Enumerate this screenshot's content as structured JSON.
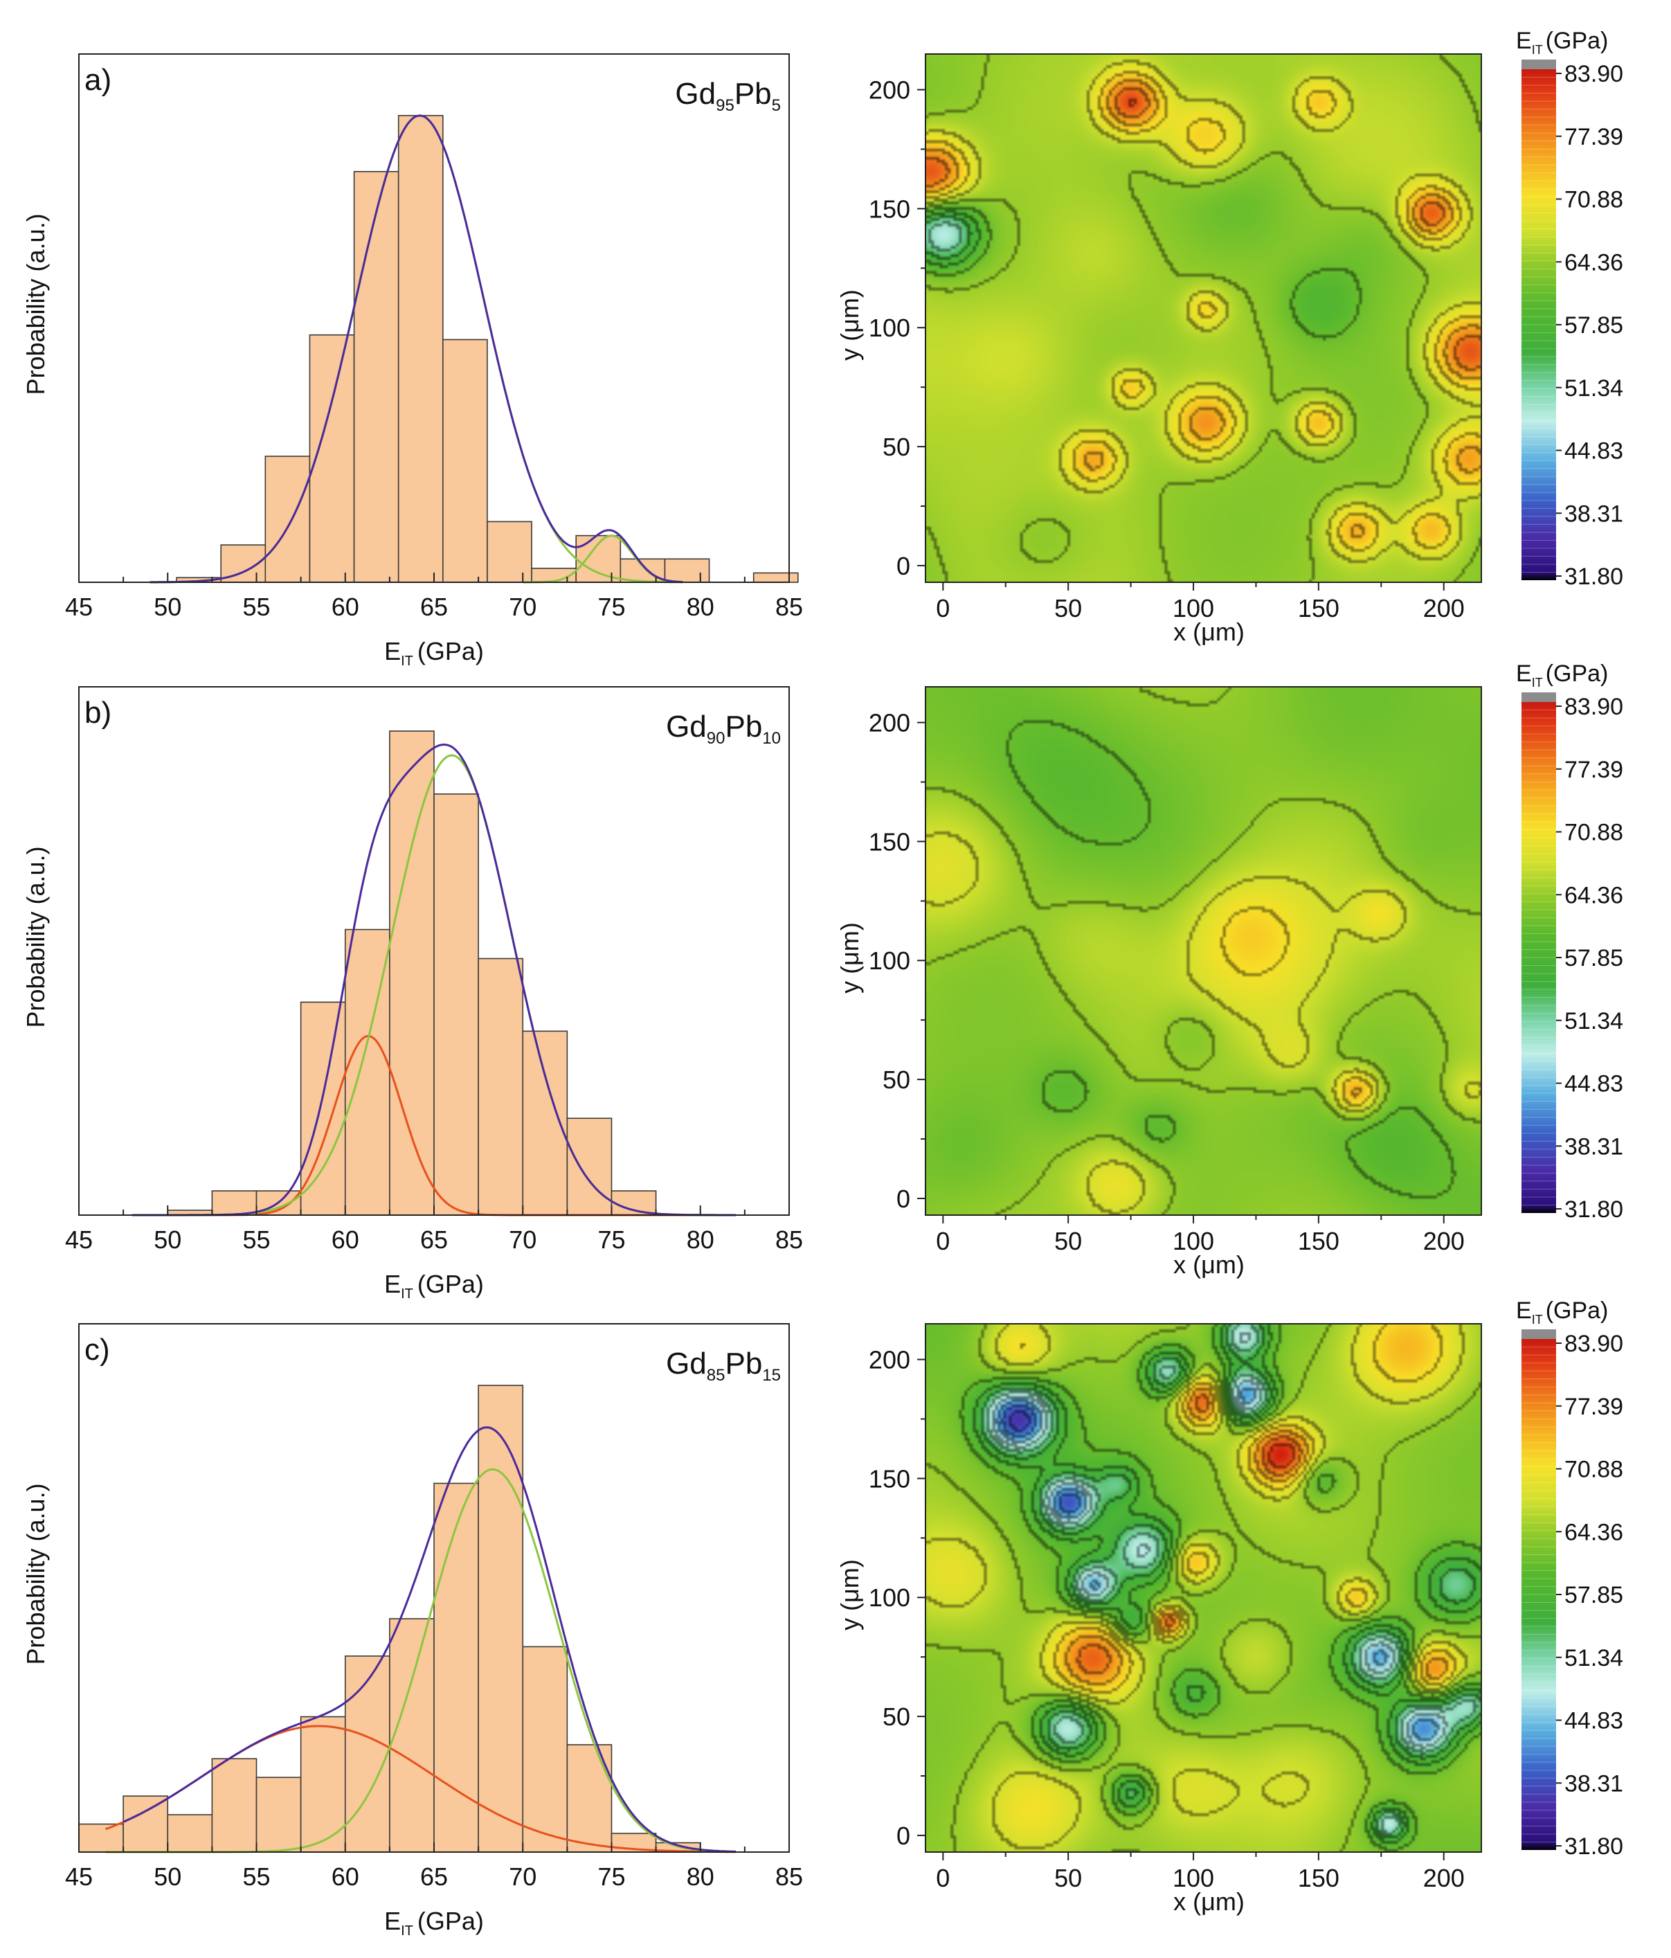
{
  "colors": {
    "bar_fill": "#f9c89b",
    "bar_stroke": "#3a3a3a",
    "envelope": "#4b2a9a",
    "green_component": "#8cc63f",
    "red_component": "#e8501e",
    "contour_line": "#333333"
  },
  "colorbar": {
    "title_main": "E",
    "title_sub": "IT",
    "title_unit": "(GPa)",
    "ticks": [
      "83.90",
      "77.39",
      "70.88",
      "64.36",
      "57.85",
      "51.34",
      "44.83",
      "38.31",
      "31.80"
    ],
    "stops": [
      {
        "v": 31.8,
        "c": "#000000"
      },
      {
        "v": 32.6,
        "c": "#2a0f7a"
      },
      {
        "v": 36.0,
        "c": "#4a2aa6"
      },
      {
        "v": 40.0,
        "c": "#3a62c8"
      },
      {
        "v": 44.0,
        "c": "#5ab0e0"
      },
      {
        "v": 48.0,
        "c": "#bfeee8"
      },
      {
        "v": 51.5,
        "c": "#79d4a8"
      },
      {
        "v": 55.0,
        "c": "#3fae3c"
      },
      {
        "v": 60.0,
        "c": "#58b82e"
      },
      {
        "v": 64.0,
        "c": "#8fca2a"
      },
      {
        "v": 67.5,
        "c": "#d2e02e"
      },
      {
        "v": 71.0,
        "c": "#f7e028"
      },
      {
        "v": 74.5,
        "c": "#f6b020"
      },
      {
        "v": 78.0,
        "c": "#ef7a1a"
      },
      {
        "v": 81.5,
        "c": "#e23a14"
      },
      {
        "v": 83.9,
        "c": "#c81a10"
      }
    ],
    "overflow_color": "#8c8c8c"
  },
  "panels": [
    {
      "label": "a)",
      "alloy": {
        "a": "Gd",
        "a_sub": "95",
        "b": "Pb",
        "b_sub": "5"
      },
      "chart_data": {
        "type": "bar",
        "xlabel_main": "E",
        "xlabel_sub": "IT",
        "xlabel_unit": "(GPa)",
        "ylabel": "Probability (a.u.)",
        "xlim": [
          45,
          85
        ],
        "xticks": [
          45,
          50,
          55,
          60,
          65,
          70,
          75,
          80,
          85
        ],
        "bin_edges": [
          48.0,
          50.5,
          53.0,
          55.5,
          58.0,
          60.5,
          63.0,
          65.5,
          68.0,
          70.5,
          73.0,
          75.5,
          78.0,
          80.5,
          83.0,
          85.5
        ],
        "values": [
          0.0,
          0.01,
          0.08,
          0.27,
          0.53,
          0.88,
          1.0,
          0.52,
          0.13,
          0.03,
          0.1,
          0.05,
          0.05,
          0.0,
          0.02
        ],
        "ymax": 1.12,
        "components": [
          {
            "color": "green",
            "amp": 1.0,
            "mu": 64.2,
            "sigma": 3.6,
            "range": [
              49,
              79
            ]
          },
          {
            "color": "green",
            "amp": 0.1,
            "mu": 75.0,
            "sigma": 1.2,
            "range": [
              70,
              79
            ]
          }
        ],
        "envelope": {
          "range": [
            49,
            79
          ]
        }
      },
      "map": {
        "xlabel_main": "x (",
        "xlabel_mu": "μ",
        "xlabel_unit": "m)",
        "ylabel_main": "y (",
        "ylabel_mu": "μ",
        "ylabel_unit": "m)",
        "xticks": [
          0,
          50,
          100,
          150,
          200
        ],
        "yticks": [
          0,
          50,
          100,
          150,
          200
        ],
        "range": [
          -7,
          215
        ],
        "base": 64.5,
        "spots": [
          {
            "x": 75,
            "y": 195,
            "a": 16,
            "s": 9
          },
          {
            "x": -5,
            "y": 165,
            "a": 17,
            "s": 11
          },
          {
            "x": 105,
            "y": 180,
            "a": 9,
            "s": 12
          },
          {
            "x": 150,
            "y": 195,
            "a": 7,
            "s": 7
          },
          {
            "x": 195,
            "y": 148,
            "a": 14,
            "s": 8
          },
          {
            "x": 210,
            "y": 90,
            "a": 15,
            "s": 11
          },
          {
            "x": 210,
            "y": 45,
            "a": 11,
            "s": 10
          },
          {
            "x": 60,
            "y": 45,
            "a": 10,
            "s": 8
          },
          {
            "x": 75,
            "y": 75,
            "a": 8,
            "s": 6
          },
          {
            "x": 105,
            "y": 60,
            "a": 12,
            "s": 10
          },
          {
            "x": 150,
            "y": 60,
            "a": 10,
            "s": 7
          },
          {
            "x": 165,
            "y": 15,
            "a": 10,
            "s": 8
          },
          {
            "x": 195,
            "y": 15,
            "a": 9,
            "s": 8
          },
          {
            "x": 105,
            "y": 108,
            "a": 7,
            "s": 6
          },
          {
            "x": 0,
            "y": 140,
            "a": -17,
            "s": 10
          },
          {
            "x": 150,
            "y": 110,
            "a": -5,
            "s": 12
          },
          {
            "x": 30,
            "y": 90,
            "a": 4,
            "s": 20
          },
          {
            "x": 170,
            "y": 135,
            "a": -3,
            "s": 15
          },
          {
            "x": 120,
            "y": 150,
            "a": -3,
            "s": 18
          },
          {
            "x": 60,
            "y": 130,
            "a": 3,
            "s": 18
          },
          {
            "x": 40,
            "y": 10,
            "a": -3,
            "s": 16
          }
        ]
      }
    },
    {
      "label": "b)",
      "alloy": {
        "a": "Gd",
        "a_sub": "90",
        "b": "Pb",
        "b_sub": "10"
      },
      "chart_data": {
        "type": "bar",
        "xlabel_main": "E",
        "xlabel_sub": "IT",
        "xlabel_unit": "(GPa)",
        "ylabel": "Probability (a.u.)",
        "xlim": [
          45,
          85
        ],
        "xticks": [
          45,
          50,
          55,
          60,
          65,
          70,
          75,
          80,
          85
        ],
        "bin_edges": [
          47.5,
          50.0,
          52.5,
          55.0,
          57.5,
          60.0,
          62.5,
          65.0,
          67.5,
          70.0,
          72.5,
          75.0,
          77.5
        ],
        "values": [
          0.0,
          0.01,
          0.05,
          0.05,
          0.44,
          0.59,
          1.0,
          0.87,
          0.53,
          0.38,
          0.2,
          0.05
        ],
        "ymax": 1.08,
        "components": [
          {
            "color": "red",
            "amp": 0.37,
            "mu": 61.3,
            "sigma": 1.9,
            "range": [
              48,
              82
            ]
          },
          {
            "color": "green",
            "amp": 0.95,
            "mu": 66.0,
            "sigma": 3.4,
            "range": [
              48,
              82
            ]
          }
        ],
        "envelope": {
          "range": [
            48,
            82
          ]
        }
      },
      "map": {
        "xlabel_main": "x (",
        "xlabel_mu": "μ",
        "xlabel_unit": "m)",
        "ylabel_main": "y (",
        "ylabel_mu": "μ",
        "ylabel_unit": "m)",
        "xticks": [
          0,
          50,
          100,
          150,
          200
        ],
        "yticks": [
          0,
          50,
          100,
          150,
          200
        ],
        "range": [
          -7,
          215
        ],
        "base": 63.5,
        "spots": [
          {
            "x": 130,
            "y": 95,
            "a": 7,
            "s": 28
          },
          {
            "x": 120,
            "y": 115,
            "a": 4,
            "s": 15
          },
          {
            "x": 165,
            "y": 45,
            "a": 13,
            "s": 7
          },
          {
            "x": 175,
            "y": 120,
            "a": 5,
            "s": 8
          },
          {
            "x": 0,
            "y": 140,
            "a": 5,
            "s": 20
          },
          {
            "x": 70,
            "y": 5,
            "a": 6,
            "s": 12
          },
          {
            "x": 140,
            "y": 60,
            "a": 4,
            "s": 10
          },
          {
            "x": 210,
            "y": 45,
            "a": 4,
            "s": 8
          },
          {
            "x": 100,
            "y": 70,
            "a": -3,
            "s": 10
          },
          {
            "x": 50,
            "y": 45,
            "a": -4,
            "s": 12
          },
          {
            "x": 85,
            "y": 30,
            "a": -4,
            "s": 10
          },
          {
            "x": 40,
            "y": 180,
            "a": -3,
            "s": 25
          },
          {
            "x": 160,
            "y": 190,
            "a": -3,
            "s": 25
          },
          {
            "x": 180,
            "y": 20,
            "a": -3,
            "s": 18
          },
          {
            "x": 10,
            "y": 20,
            "a": -3,
            "s": 18
          },
          {
            "x": 190,
            "y": 150,
            "a": -2,
            "s": 15
          },
          {
            "x": 60,
            "y": 110,
            "a": 3,
            "s": 18
          }
        ]
      }
    },
    {
      "label": "c)",
      "alloy": {
        "a": "Gd",
        "a_sub": "85",
        "b": "Pb",
        "b_sub": "15"
      },
      "chart_data": {
        "type": "bar",
        "xlabel_main": "E",
        "xlabel_sub": "IT",
        "xlabel_unit": "(GPa)",
        "ylabel": "Probability (a.u.)",
        "xlim": [
          45,
          85
        ],
        "xticks": [
          45,
          50,
          55,
          60,
          65,
          70,
          75,
          80,
          85
        ],
        "bin_edges": [
          45.0,
          47.5,
          50.0,
          52.5,
          55.0,
          57.5,
          60.0,
          62.5,
          65.0,
          67.5,
          70.0,
          72.5,
          75.0,
          77.5,
          80.0,
          82.5
        ],
        "values": [
          0.06,
          0.12,
          0.08,
          0.2,
          0.16,
          0.29,
          0.42,
          0.5,
          0.79,
          1.0,
          0.44,
          0.23,
          0.04,
          0.02,
          0.0
        ],
        "ymax": 1.12,
        "components": [
          {
            "color": "red",
            "amp": 0.27,
            "mu": 58.5,
            "sigma": 6.5,
            "range": [
              46.5,
              82
            ]
          },
          {
            "color": "green",
            "amp": 0.82,
            "mu": 68.3,
            "sigma": 3.6,
            "range": [
              46.5,
              82
            ]
          }
        ],
        "envelope": {
          "range": [
            47.5,
            82
          ]
        }
      },
      "map": {
        "xlabel_main": "x (",
        "xlabel_mu": "μ",
        "xlabel_unit": "m)",
        "ylabel_main": "y (",
        "ylabel_mu": "μ",
        "ylabel_unit": "m)",
        "xticks": [
          0,
          50,
          100,
          150,
          200
        ],
        "yticks": [
          0,
          50,
          100,
          150,
          200
        ],
        "range": [
          -7,
          215
        ],
        "base": 63.5,
        "spots": [
          {
            "x": 30,
            "y": 175,
            "a": -26,
            "s": 10
          },
          {
            "x": 50,
            "y": 140,
            "a": -22,
            "s": 8
          },
          {
            "x": 90,
            "y": 195,
            "a": -15,
            "s": 7
          },
          {
            "x": 120,
            "y": 185,
            "a": -24,
            "s": 8
          },
          {
            "x": 120,
            "y": 210,
            "a": -16,
            "s": 7
          },
          {
            "x": 80,
            "y": 120,
            "a": -14,
            "s": 9
          },
          {
            "x": 60,
            "y": 105,
            "a": -18,
            "s": 7
          },
          {
            "x": 75,
            "y": 90,
            "a": -10,
            "s": 6
          },
          {
            "x": 50,
            "y": 45,
            "a": -18,
            "s": 9
          },
          {
            "x": 75,
            "y": 18,
            "a": -12,
            "s": 6
          },
          {
            "x": 175,
            "y": 75,
            "a": -20,
            "s": 9
          },
          {
            "x": 192,
            "y": 45,
            "a": -22,
            "s": 9
          },
          {
            "x": 210,
            "y": 55,
            "a": -14,
            "s": 7
          },
          {
            "x": 205,
            "y": 105,
            "a": -12,
            "s": 10
          },
          {
            "x": 178,
            "y": 5,
            "a": -15,
            "s": 5
          },
          {
            "x": 70,
            "y": 148,
            "a": -8,
            "s": 6
          },
          {
            "x": 105,
            "y": 183,
            "a": 18,
            "s": 8
          },
          {
            "x": 135,
            "y": 160,
            "a": 18,
            "s": 9
          },
          {
            "x": 60,
            "y": 75,
            "a": 15,
            "s": 12
          },
          {
            "x": 90,
            "y": 90,
            "a": 16,
            "s": 5
          },
          {
            "x": 195,
            "y": 70,
            "a": 13,
            "s": 8
          },
          {
            "x": 185,
            "y": 205,
            "a": 10,
            "s": 16
          },
          {
            "x": 30,
            "y": 205,
            "a": 8,
            "s": 10
          },
          {
            "x": 100,
            "y": 115,
            "a": 11,
            "s": 7
          },
          {
            "x": 165,
            "y": 100,
            "a": 9,
            "s": 6
          },
          {
            "x": 125,
            "y": 75,
            "a": 5,
            "s": 12
          },
          {
            "x": 140,
            "y": 25,
            "a": 6,
            "s": 20
          },
          {
            "x": 35,
            "y": 10,
            "a": 6,
            "s": 15
          },
          {
            "x": 100,
            "y": 20,
            "a": 4,
            "s": 14
          },
          {
            "x": 5,
            "y": 110,
            "a": 5,
            "s": 15
          },
          {
            "x": 150,
            "y": 150,
            "a": -7,
            "s": 7
          },
          {
            "x": 100,
            "y": 60,
            "a": -6,
            "s": 7
          }
        ]
      }
    }
  ]
}
